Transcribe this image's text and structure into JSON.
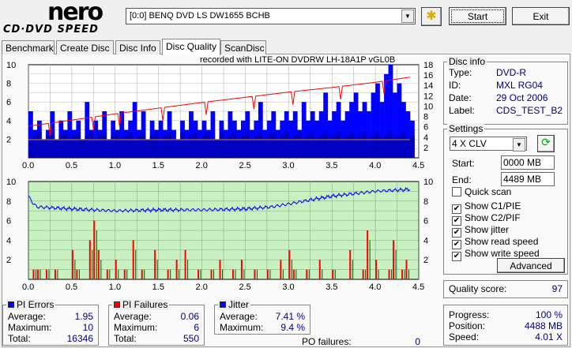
{
  "app": {
    "logo_top": "nero",
    "logo_bottom": "CD·DVD SPEED"
  },
  "toolbar": {
    "drive": "[0:0]  BENQ DVD LS DW1655 BCHB",
    "start": "Start",
    "exit": "Exit"
  },
  "tabs": [
    "Benchmark",
    "Create Disc",
    "Disc Info",
    "Disc Quality",
    "ScanDisc"
  ],
  "active_tab": "Disc Quality",
  "recorded_with": "recorded with LITE-ON DVDRW LH-18A1P    vGL0B",
  "disc_info": {
    "title": "Disc info",
    "rows": [
      {
        "label": "Type:",
        "value": "DVD-R"
      },
      {
        "label": "ID:",
        "value": "MXL RG04"
      },
      {
        "label": "Date:",
        "value": "29 Oct 2006"
      },
      {
        "label": "Label:",
        "value": "CDS_TEST_B2"
      }
    ]
  },
  "settings": {
    "title": "Settings",
    "speed": "4 X CLV",
    "start_label": "Start:",
    "start": "0000 MB",
    "end_label": "End:",
    "end": "4489 MB",
    "checks": [
      {
        "label": "Quick scan",
        "checked": false
      },
      {
        "label": "Show C1/PIE",
        "checked": true
      },
      {
        "label": "Show C2/PIF",
        "checked": true
      },
      {
        "label": "Show jitter",
        "checked": true
      },
      {
        "label": "Show read speed",
        "checked": true
      },
      {
        "label": "Show write speed",
        "checked": true
      }
    ],
    "advanced": "Advanced"
  },
  "quality": {
    "label": "Quality score:",
    "value": "97"
  },
  "progress": {
    "rows": [
      {
        "label": "Progress:",
        "value": "100 %"
      },
      {
        "label": "Position:",
        "value": "4488 MB"
      },
      {
        "label": "Speed:",
        "value": "4.01 X"
      }
    ]
  },
  "pi_errors": {
    "title": "PI Errors",
    "color": "#0000ff",
    "rows": [
      {
        "label": "Average:",
        "value": "1.95"
      },
      {
        "label": "Maximum:",
        "value": "10"
      },
      {
        "label": "Total:",
        "value": "16346"
      }
    ]
  },
  "pi_failures": {
    "title": "PI Failures",
    "color": "#ff0000",
    "rows": [
      {
        "label": "Average:",
        "value": "0.06"
      },
      {
        "label": "Maximum:",
        "value": "6"
      },
      {
        "label": "Total:",
        "value": "550"
      }
    ]
  },
  "jitter": {
    "title": "Jitter",
    "color": "#0000ff",
    "rows": [
      {
        "label": "Average:",
        "value": "7.41 %"
      },
      {
        "label": "Maximum:",
        "value": "9.4 %"
      }
    ]
  },
  "po_failures": {
    "label": "PO failures:",
    "value": "0"
  },
  "chart_data": [
    {
      "type": "bar",
      "name": "PI errors / read speed",
      "xlim": [
        0,
        4.5
      ],
      "xticks": [
        "0.0",
        "0.5",
        "1.0",
        "1.5",
        "2.0",
        "2.5",
        "3.0",
        "3.5",
        "4.0",
        "4.5"
      ],
      "ylim": [
        0,
        10
      ],
      "yticks": [
        "2",
        "4",
        "6",
        "8",
        "10"
      ],
      "y2lim": [
        0,
        18
      ],
      "y2ticks": [
        "2",
        "4",
        "6",
        "8",
        "10",
        "12",
        "14",
        "16",
        "18"
      ],
      "x_step": 0.05,
      "pie": [
        5,
        3,
        4,
        2,
        3,
        5,
        2,
        4,
        3,
        5,
        3,
        4,
        2,
        6,
        3,
        4,
        3,
        5,
        2,
        4,
        3,
        5,
        3,
        4,
        6,
        3,
        5,
        2,
        4,
        3,
        4,
        3,
        5,
        3,
        2,
        4,
        3,
        5,
        4,
        3,
        4,
        3,
        5,
        2,
        4,
        3,
        5,
        4,
        3,
        4,
        5,
        3,
        4,
        6,
        3,
        4,
        5,
        3,
        4,
        5,
        4,
        5,
        3,
        6,
        4,
        5,
        4,
        5,
        7,
        4,
        5,
        6,
        4,
        5,
        6,
        7,
        5,
        6,
        5,
        7,
        8,
        6,
        9,
        10,
        7,
        8,
        6,
        5,
        4
      ],
      "read_speed": [
        [
          0,
          6.1
        ],
        [
          0.5,
          7.3
        ],
        [
          1.0,
          8.5
        ],
        [
          1.5,
          9.6
        ],
        [
          2.0,
          10.7
        ],
        [
          2.5,
          11.7
        ],
        [
          3.0,
          12.7
        ],
        [
          3.5,
          13.6
        ],
        [
          4.0,
          14.6
        ],
        [
          4.4,
          15.6
        ]
      ],
      "speed_dips": [
        0.25,
        0.75,
        1.05,
        1.55,
        2.05,
        2.6,
        3.05,
        3.6,
        4.1
      ],
      "write_speed": 3.5
    },
    {
      "type": "line",
      "name": "PI failures / jitter",
      "xlim": [
        0,
        4.5
      ],
      "xticks": [
        "0.0",
        "0.5",
        "1.0",
        "1.5",
        "2.0",
        "2.5",
        "3.0",
        "3.5",
        "4.0",
        "4.5"
      ],
      "ylim": [
        0,
        10
      ],
      "yticks": [
        "2",
        "4",
        "6",
        "8",
        "10"
      ],
      "y2ticks": [
        "2",
        "4",
        "6",
        "8",
        "10"
      ],
      "pif": [
        [
          0.05,
          1
        ],
        [
          0.1,
          1
        ],
        [
          0.2,
          1
        ],
        [
          0.3,
          1
        ],
        [
          0.5,
          3
        ],
        [
          0.55,
          1
        ],
        [
          0.7,
          4
        ],
        [
          0.75,
          6
        ],
        [
          0.8,
          3
        ],
        [
          0.9,
          1
        ],
        [
          1.0,
          2
        ],
        [
          1.1,
          1
        ],
        [
          1.2,
          4
        ],
        [
          1.3,
          1
        ],
        [
          1.45,
          3
        ],
        [
          1.6,
          1
        ],
        [
          1.7,
          2
        ],
        [
          1.8,
          3
        ],
        [
          1.95,
          1
        ],
        [
          2.1,
          1
        ],
        [
          2.2,
          2
        ],
        [
          2.35,
          1
        ],
        [
          2.45,
          2
        ],
        [
          2.6,
          1
        ],
        [
          2.75,
          1
        ],
        [
          2.9,
          2
        ],
        [
          3.0,
          3
        ],
        [
          3.05,
          1
        ],
        [
          3.2,
          1
        ],
        [
          3.35,
          2
        ],
        [
          3.5,
          1
        ],
        [
          3.7,
          3
        ],
        [
          3.85,
          1
        ],
        [
          3.9,
          5
        ],
        [
          4.0,
          2
        ],
        [
          4.15,
          1
        ],
        [
          4.2,
          4
        ],
        [
          4.3,
          1
        ],
        [
          4.35,
          2
        ]
      ],
      "jitter": [
        [
          0,
          8.5
        ],
        [
          0.05,
          7.8
        ],
        [
          0.1,
          7.4
        ],
        [
          0.3,
          7.3
        ],
        [
          0.5,
          7.2
        ],
        [
          1.0,
          7.0
        ],
        [
          1.5,
          7.1
        ],
        [
          2.0,
          7.1
        ],
        [
          2.5,
          7.2
        ],
        [
          2.8,
          7.4
        ],
        [
          3.0,
          7.7
        ],
        [
          3.3,
          8.2
        ],
        [
          3.5,
          8.5
        ],
        [
          3.8,
          8.8
        ],
        [
          4.0,
          9.0
        ],
        [
          4.2,
          9.1
        ],
        [
          4.4,
          9.2
        ]
      ]
    }
  ]
}
